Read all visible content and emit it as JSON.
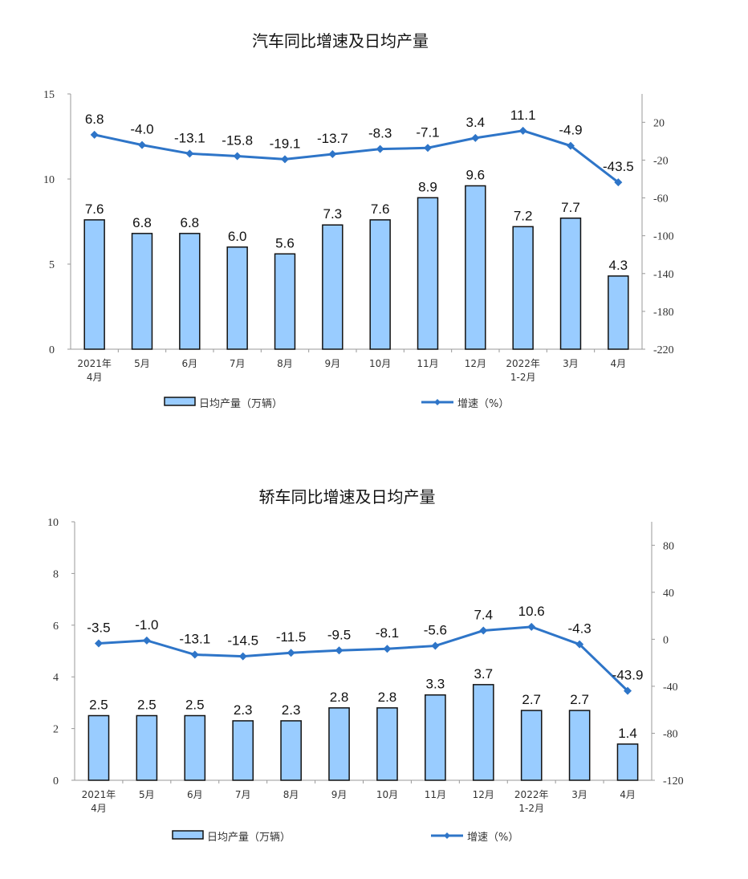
{
  "chart_data": [
    {
      "type": "bar+line",
      "title": "汽车同比增速及日均产量",
      "categories": [
        [
          "2021年",
          "4月"
        ],
        [
          "5月"
        ],
        [
          "6月"
        ],
        [
          "7月"
        ],
        [
          "8月"
        ],
        [
          "9月"
        ],
        [
          "10月"
        ],
        [
          "11月"
        ],
        [
          "12月"
        ],
        [
          "2022年",
          "1-2月"
        ],
        [
          "3月"
        ],
        [
          "4月"
        ]
      ],
      "series": [
        {
          "name": "日均产量（万辆）",
          "type": "bar",
          "axis": "left",
          "values": [
            7.6,
            6.8,
            6.8,
            6.0,
            5.6,
            7.3,
            7.6,
            8.9,
            9.6,
            7.2,
            7.7,
            4.3
          ],
          "labels": [
            "7.6",
            "6.8",
            "6.8",
            "6.0",
            "5.6",
            "7.3",
            "7.6",
            "8.9",
            "9.6",
            "7.2",
            "7.7",
            "4.3"
          ]
        },
        {
          "name": "增速（%）",
          "type": "line",
          "axis": "right",
          "values": [
            6.8,
            -4.0,
            -13.1,
            -15.8,
            -19.1,
            -13.7,
            -8.3,
            -7.1,
            3.4,
            11.1,
            -4.9,
            -43.5
          ],
          "labels": [
            "6.8",
            "-4.0",
            "-13.1",
            "-15.8",
            "-19.1",
            "-13.7",
            "-8.3",
            "-7.1",
            "3.4",
            "11.1",
            "-4.9",
            "-43.5"
          ]
        }
      ],
      "ylim_left": [
        0,
        15
      ],
      "yticks_left": [
        "0",
        "5",
        "10",
        "15"
      ],
      "ylim_right": [
        -220,
        50
      ],
      "yticks_right": [
        "-220",
        "-180",
        "-140",
        "-100",
        "-60",
        "-20",
        "20"
      ],
      "legend": "bottom",
      "grid": false,
      "colors": {
        "bar": "#99ccff",
        "bar_edge": "#111111",
        "line": "#2e75c8"
      }
    },
    {
      "type": "bar+line",
      "title": "轿车同比增速及日均产量",
      "categories": [
        [
          "2021年",
          "4月"
        ],
        [
          "5月"
        ],
        [
          "6月"
        ],
        [
          "7月"
        ],
        [
          "8月"
        ],
        [
          "9月"
        ],
        [
          "10月"
        ],
        [
          "11月"
        ],
        [
          "12月"
        ],
        [
          "2022年",
          "1-2月"
        ],
        [
          "3月"
        ],
        [
          "4月"
        ]
      ],
      "series": [
        {
          "name": "日均产量（万辆）",
          "type": "bar",
          "axis": "left",
          "values": [
            2.5,
            2.5,
            2.5,
            2.3,
            2.3,
            2.8,
            2.8,
            3.3,
            3.7,
            2.7,
            2.7,
            1.4
          ],
          "labels": [
            "2.5",
            "2.5",
            "2.5",
            "2.3",
            "2.3",
            "2.8",
            "2.8",
            "3.3",
            "3.7",
            "2.7",
            "2.7",
            "1.4"
          ]
        },
        {
          "name": "增速（%）",
          "type": "line",
          "axis": "right",
          "values": [
            -3.5,
            -1.0,
            -13.1,
            -14.5,
            -11.5,
            -9.5,
            -8.1,
            -5.6,
            7.4,
            10.6,
            -4.3,
            -43.9
          ],
          "labels": [
            "-3.5",
            "-1.0",
            "-13.1",
            "-14.5",
            "-11.5",
            "-9.5",
            "-8.1",
            "-5.6",
            "7.4",
            "10.6",
            "-4.3",
            "-43.9"
          ]
        }
      ],
      "ylim_left": [
        0,
        10
      ],
      "yticks_left": [
        "0",
        "2",
        "4",
        "6",
        "8",
        "10"
      ],
      "ylim_right": [
        -120,
        100
      ],
      "yticks_right": [
        "-120",
        "-80",
        "-40",
        "0",
        "40",
        "80"
      ],
      "legend": "bottom",
      "grid": false,
      "colors": {
        "bar": "#99ccff",
        "bar_edge": "#111111",
        "line": "#2e75c8"
      }
    }
  ]
}
